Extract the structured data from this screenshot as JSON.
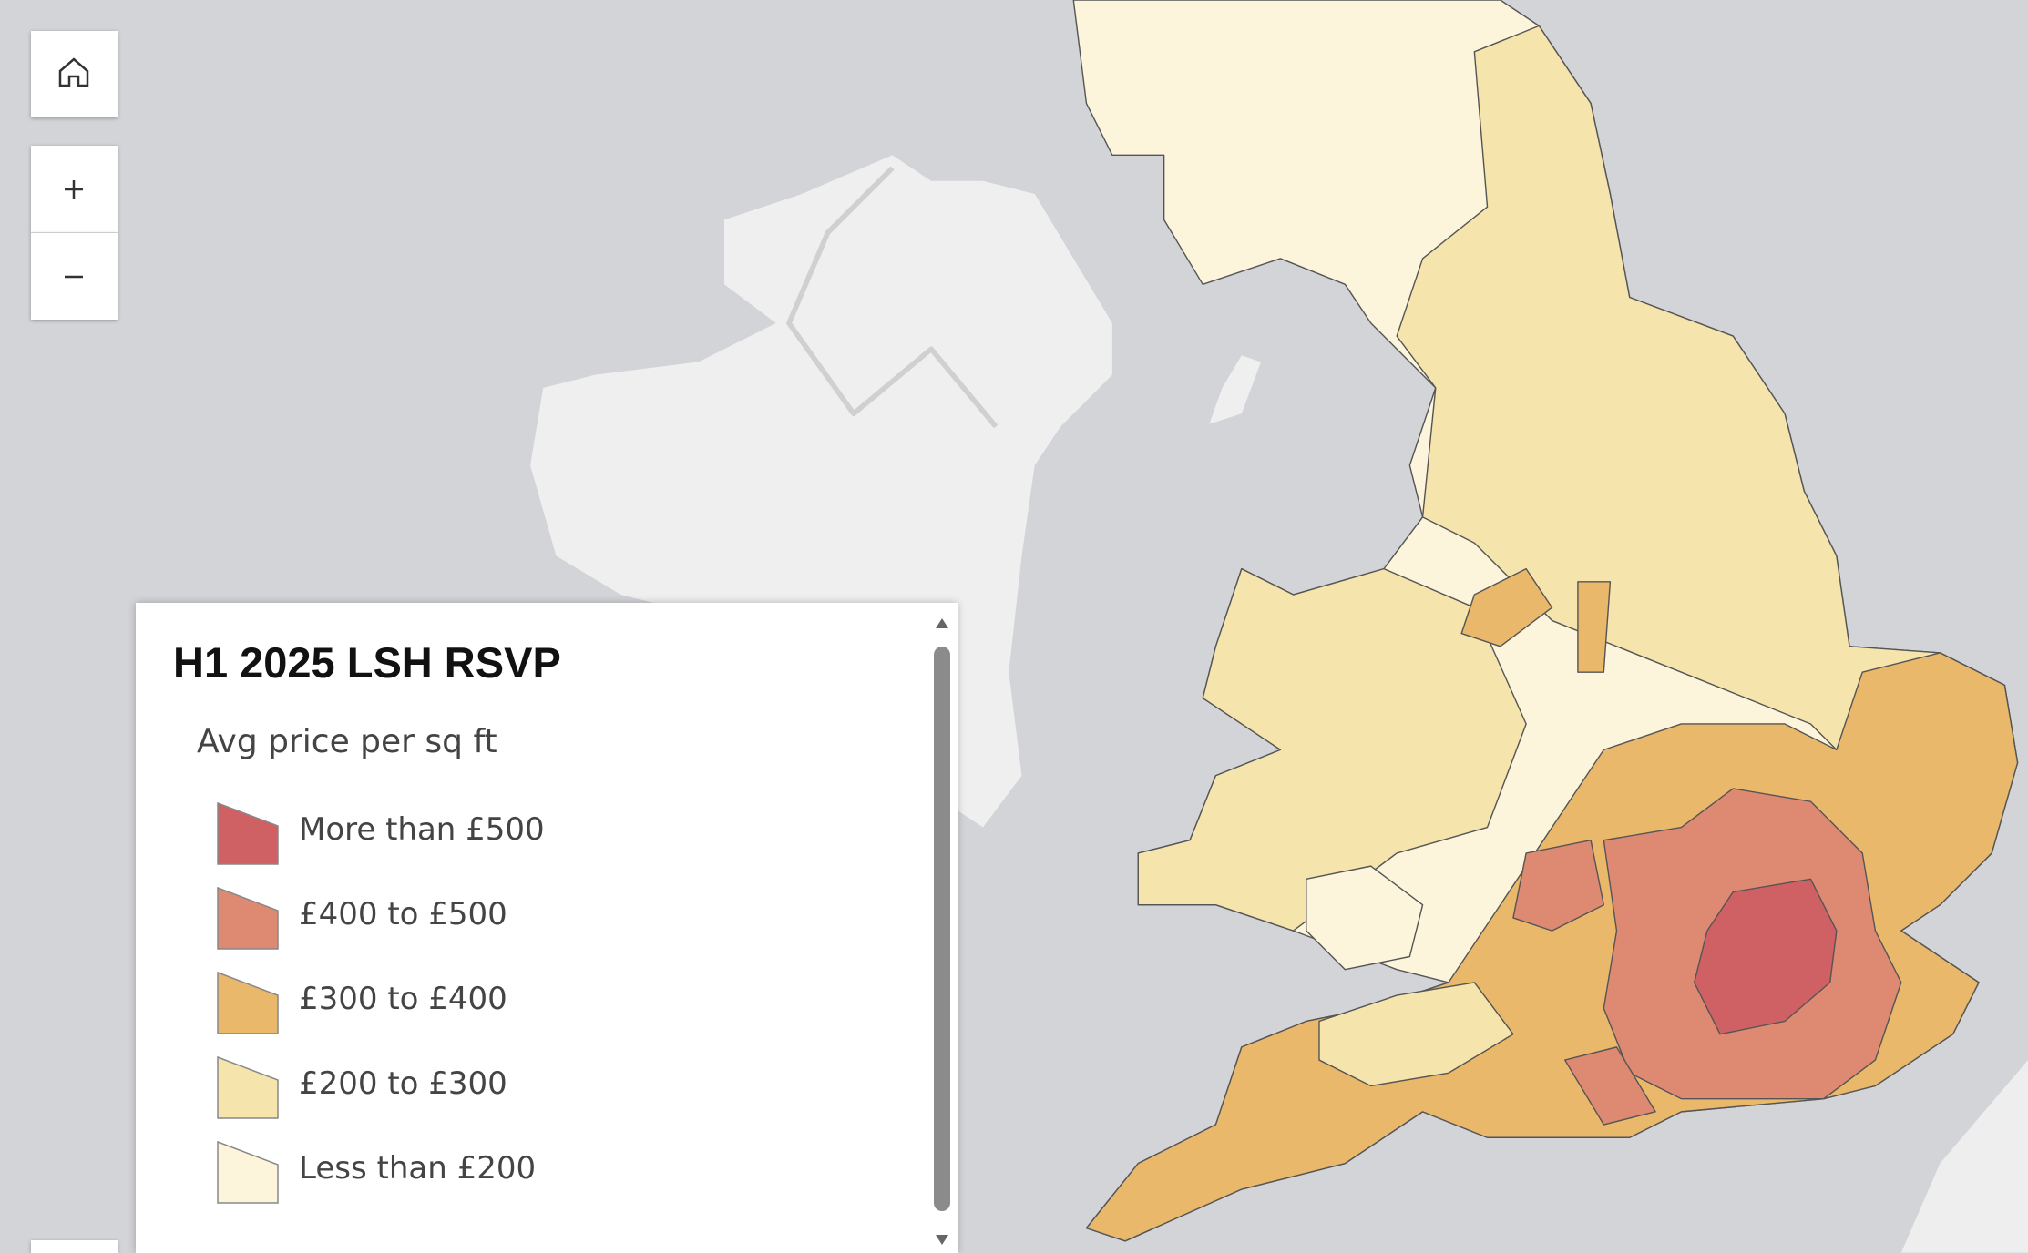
{
  "legend": {
    "title": "H1 2025 LSH RSVP",
    "subtitle": "Avg price per sq ft",
    "items": [
      {
        "label": "More than £500",
        "color": "#cf6164"
      },
      {
        "label": "£400 to £500",
        "color": "#de8a73"
      },
      {
        "label": "£300 to £400",
        "color": "#e9b86b"
      },
      {
        "label": "£200 to £300",
        "color": "#f6e4ad"
      },
      {
        "label": "Less than £200",
        "color": "#fcf5dc"
      }
    ]
  }
}
